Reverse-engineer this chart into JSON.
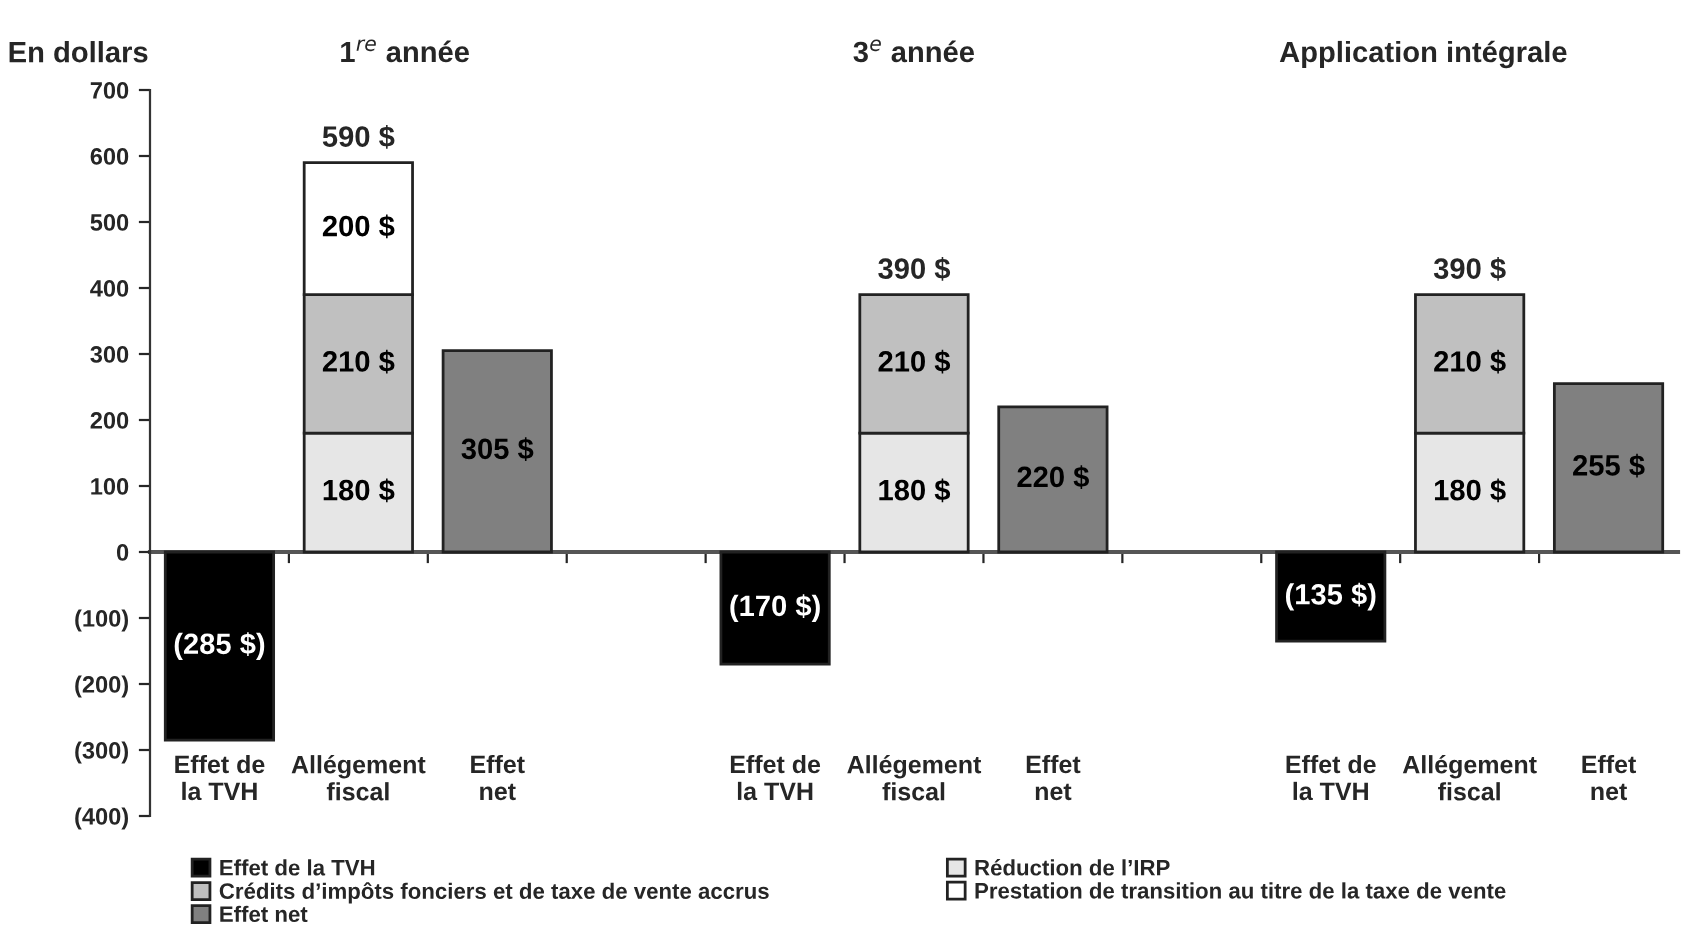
{
  "chart_data": {
    "type": "bar",
    "stacked": true,
    "ylabel": "En dollars",
    "annotations": [
      "1$^{re}$ année",
      "3$^{e}$ année",
      "Application intégrale"
    ],
    "categories": [
      "Effet de\nla TVH",
      "Allégement\nfiscal",
      "Effet\nnet",
      null,
      "Effet de\nla TVH",
      "Allégement\nfiscal",
      "Effet\nnet",
      null,
      "Effet de\nla TVH",
      "Allégement\nfiscal",
      "Effet\nnet"
    ],
    "series": [
      {
        "name": "Effet de la TVH",
        "color": "#000000",
        "values": [
          -285,
          null,
          null,
          null,
          -170,
          null,
          null,
          null,
          -135,
          null,
          null
        ],
        "value_labels": [
          "(285 $)",
          null,
          null,
          null,
          "(170 $)",
          null,
          null,
          null,
          "(135 $)",
          null,
          null
        ]
      },
      {
        "name": "Réduction de l’IRP",
        "color": "#e6e6e6",
        "values": [
          null,
          180,
          null,
          null,
          null,
          180,
          null,
          null,
          null,
          180,
          null
        ],
        "value_labels": [
          null,
          "180 $",
          null,
          null,
          null,
          "180 $",
          null,
          null,
          null,
          "180 $",
          null
        ]
      },
      {
        "name": "Crédits d’impôts fonciers et de taxe de vente accrus",
        "color": "#c0c0c0",
        "values": [
          null,
          210,
          null,
          null,
          null,
          210,
          null,
          null,
          null,
          210,
          null
        ],
        "value_labels": [
          null,
          "210 $",
          null,
          null,
          null,
          "210 $",
          null,
          null,
          null,
          "210 $",
          null
        ]
      },
      {
        "name": "Prestation de transition au titre de la taxe de vente",
        "color": "#ffffff",
        "values": [
          null,
          200,
          null,
          null,
          null,
          null,
          null,
          null,
          null,
          null,
          null
        ],
        "value_labels": [
          null,
          "200 $",
          null,
          null,
          null,
          null,
          null,
          null,
          null,
          null,
          null
        ]
      },
      {
        "name": "Effet net",
        "color": "#808080",
        "values": [
          null,
          null,
          305,
          null,
          null,
          null,
          220,
          null,
          null,
          null,
          255
        ],
        "value_labels": [
          null,
          null,
          "305 $",
          null,
          null,
          null,
          "220 $",
          null,
          null,
          null,
          "255 $"
        ]
      }
    ],
    "totals": [
      null,
      "590 $",
      null,
      null,
      null,
      "390 $",
      null,
      null,
      null,
      "390 $",
      null
    ],
    "ylim": [
      -400,
      700
    ],
    "yticks": [
      {
        "value": -400,
        "label": "(400)"
      },
      {
        "value": -300,
        "label": "(300)"
      },
      {
        "value": -200,
        "label": "(200)"
      },
      {
        "value": -100,
        "label": "(100)"
      },
      0,
      100,
      200,
      300,
      400,
      500,
      600,
      700
    ],
    "legend": "bottom"
  }
}
